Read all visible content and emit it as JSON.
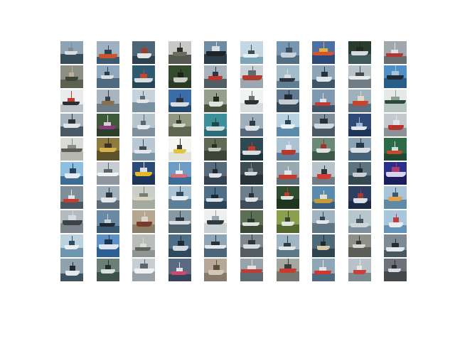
{
  "figure": {
    "rows": 10,
    "columns": 10,
    "subject": "boat",
    "tiles": [
      [
        {
          "sky": "#8ea4b4",
          "water": "#394e5c",
          "hull": "#d8dde2",
          "accent": "#7b8c98"
        },
        {
          "sky": "#9db1c2",
          "water": "#3d5a70",
          "hull": "#c8552c",
          "accent": "#2f4251"
        },
        {
          "sky": "#4e6578",
          "water": "#2e4150",
          "hull": "#e2e4e6",
          "accent": "#a13c2c"
        },
        {
          "sky": "#c7c9c5",
          "water": "#55594f",
          "hull": "#6d6a60",
          "accent": "#2c2d2a"
        },
        {
          "sky": "#6f8ca3",
          "water": "#2a3c4a",
          "hull": "#1e2328",
          "accent": "#d9dee2"
        },
        {
          "sky": "#c3d8e2",
          "water": "#7fa6b8",
          "hull": "#e6eef2",
          "accent": "#3a4c55"
        },
        {
          "sky": "#7895b2",
          "water": "#536d82",
          "hull": "#c5d2dc",
          "accent": "#3d4f5e"
        },
        {
          "sky": "#4d6fa3",
          "water": "#2e4a78",
          "hull": "#d9532a",
          "accent": "#e2b040"
        },
        {
          "sky": "#2b3b2e",
          "water": "#3f5a5c",
          "hull": "#d5d9dc",
          "accent": "#1f2b24"
        },
        {
          "sky": "#a2a7ab",
          "water": "#6a6d70",
          "hull": "#b53434",
          "accent": "#e0e2e3"
        }
      ],
      [
        {
          "sky": "#8b8f84",
          "water": "#5c624f",
          "hull": "#3e4436",
          "accent": "#b8b09a"
        },
        {
          "sky": "#8fa8bd",
          "water": "#4e6a80",
          "hull": "#dadfe3",
          "accent": "#2f3d48"
        },
        {
          "sky": "#2f5a72",
          "water": "#274556",
          "hull": "#d6dde2",
          "accent": "#c04a2e"
        },
        {
          "sky": "#334a2c",
          "water": "#2a3a26",
          "hull": "#c9cfc8",
          "accent": "#1b2417"
        },
        {
          "sky": "#a6b3bc",
          "water": "#525e66",
          "hull": "#c2332c",
          "accent": "#2e363c"
        },
        {
          "sky": "#cad2d8",
          "water": "#9aa7b1",
          "hull": "#b23a2d",
          "accent": "#5d6a73"
        },
        {
          "sky": "#a3bccb",
          "water": "#5f7d90",
          "hull": "#2d3338",
          "accent": "#d7dde1"
        },
        {
          "sky": "#8da4b6",
          "water": "#3d566a",
          "hull": "#e0e5e9",
          "accent": "#24323d"
        },
        {
          "sky": "#b7c2c9",
          "water": "#707d86",
          "hull": "#e8eaec",
          "accent": "#414a51"
        },
        {
          "sky": "#4f8fc7",
          "water": "#2a5c8a",
          "hull": "#1f2a33",
          "accent": "#a6c3da"
        }
      ],
      [
        {
          "sky": "#e9ecee",
          "water": "#b9c1c6",
          "hull": "#2a2f33",
          "accent": "#c23b2e"
        },
        {
          "sky": "#a9b6bf",
          "water": "#6e7c86",
          "hull": "#8a6f4e",
          "accent": "#3a4046"
        },
        {
          "sky": "#c6d3dc",
          "water": "#7890a0",
          "hull": "#e3e6e8",
          "accent": "#5b6a74"
        },
        {
          "sky": "#3b6ea8",
          "water": "#26496e",
          "hull": "#d8dde1",
          "accent": "#2a3138"
        },
        {
          "sky": "#95a08c",
          "water": "#48533f",
          "hull": "#dfe3dd",
          "accent": "#22291e"
        },
        {
          "sky": "#f1f2f2",
          "water": "#d9dcdd",
          "hull": "#2c3033",
          "accent": "#6a6f72"
        },
        {
          "sky": "#607a92",
          "water": "#364a5c",
          "hull": "#c4cdd4",
          "accent": "#1f2a33"
        },
        {
          "sky": "#7f99b0",
          "water": "#3e5468",
          "hull": "#c23a32",
          "accent": "#dfe4e8"
        },
        {
          "sky": "#9eb1bf",
          "water": "#58707f",
          "hull": "#c8452c",
          "accent": "#e6d8c8"
        },
        {
          "sky": "#e5e9e8",
          "water": "#b8c4c0",
          "hull": "#2b4a3a",
          "accent": "#8a9e94"
        }
      ],
      [
        {
          "sky": "#a8b4bd",
          "water": "#4b5964",
          "hull": "#e1e5e8",
          "accent": "#2a333a"
        },
        {
          "sky": "#3f5a3a",
          "water": "#2c3f2a",
          "hull": "#8a3a7a",
          "accent": "#d8d0d6"
        },
        {
          "sky": "#b7c4cc",
          "water": "#7e8f9b",
          "hull": "#e4e8ea",
          "accent": "#596670"
        },
        {
          "sky": "#8f9a80",
          "water": "#5c6650",
          "hull": "#d4d6cd",
          "accent": "#353b2d"
        },
        {
          "sky": "#3d8f9a",
          "water": "#2b6c76",
          "hull": "#d6dfe1",
          "accent": "#1f4a50"
        },
        {
          "sky": "#9fb0bc",
          "water": "#56697a",
          "hull": "#dce2e6",
          "accent": "#2e3b45"
        },
        {
          "sky": "#b8d2e2",
          "water": "#5c8aa8",
          "hull": "#eaf0f3",
          "accent": "#2b4456"
        },
        {
          "sky": "#7f8e98",
          "water": "#4a5963",
          "hull": "#d2d8dc",
          "accent": "#26313a"
        },
        {
          "sky": "#2d4a78",
          "water": "#1e3558",
          "hull": "#e2e7ed",
          "accent": "#9fb6d3"
        },
        {
          "sky": "#c3c9cd",
          "water": "#8c9397",
          "hull": "#b6332c",
          "accent": "#e3e6e8"
        }
      ],
      [
        {
          "sky": "#d9dbd6",
          "water": "#b7b9b1",
          "hull": "#5a5e58",
          "accent": "#898c84"
        },
        {
          "sky": "#8c7a3e",
          "water": "#5e5229",
          "hull": "#d7b24c",
          "accent": "#3a3420"
        },
        {
          "sky": "#b9c8d2",
          "water": "#7f96a7",
          "hull": "#e4e8eb",
          "accent": "#3c4b56"
        },
        {
          "sky": "#f5f5f2",
          "water": "#e3e3dc",
          "hull": "#e3c43e",
          "accent": "#3b3a33"
        },
        {
          "sky": "#5f6b57",
          "water": "#3c4636",
          "hull": "#c5c8c1",
          "accent": "#262d21"
        },
        {
          "sky": "#2f4a52",
          "water": "#1f353c",
          "hull": "#d9dfe1",
          "accent": "#c23b2e"
        },
        {
          "sky": "#a9c2d4",
          "water": "#5c7d96",
          "hull": "#b8382e",
          "accent": "#e4e8eb"
        },
        {
          "sky": "#6b8a7a",
          "water": "#3e5a4c",
          "hull": "#dfe3e0",
          "accent": "#9f3428"
        },
        {
          "sky": "#8aa3b5",
          "water": "#46617a",
          "hull": "#d9dfe4",
          "accent": "#28384a"
        },
        {
          "sky": "#2d6a48",
          "water": "#1d4a31",
          "hull": "#c44a2c",
          "accent": "#d6d9d4"
        }
      ],
      [
        {
          "sky": "#8fbfe0",
          "water": "#3c6e95",
          "hull": "#e5ebef",
          "accent": "#26425a"
        },
        {
          "sky": "#c6ccd0",
          "water": "#8e979d",
          "hull": "#f0f2f3",
          "accent": "#59636a"
        },
        {
          "sky": "#2c4a78",
          "water": "#1d3558",
          "hull": "#e2b72c",
          "accent": "#dadfe6"
        },
        {
          "sky": "#6e9cc4",
          "water": "#3c6d98",
          "hull": "#d96a7a",
          "accent": "#e8edf2"
        },
        {
          "sky": "#566b7c",
          "water": "#34434f",
          "hull": "#dfe3e6",
          "accent": "#1f2930"
        },
        {
          "sky": "#3e4c54",
          "water": "#28343a",
          "hull": "#d6dcdf",
          "accent": "#7b888f"
        },
        {
          "sky": "#9aa8b2",
          "water": "#5f6d78",
          "hull": "#c23a2e",
          "accent": "#e4e7e9"
        },
        {
          "sky": "#b7c2c9",
          "water": "#6f7d88",
          "hull": "#d33a30",
          "accent": "#2c363e"
        },
        {
          "sky": "#5c7480",
          "water": "#35474f",
          "hull": "#c8d0d4",
          "accent": "#1e2a30"
        },
        {
          "sky": "#2a2f8a",
          "water": "#1a1e5c",
          "hull": "#d8d2ea",
          "accent": "#b13a6a"
        }
      ],
      [
        {
          "sky": "#7f8f9a",
          "water": "#485864",
          "hull": "#c73a30",
          "accent": "#e1e5e8"
        },
        {
          "sky": "#9fb0bb",
          "water": "#5a6c78",
          "hull": "#e3e7ea",
          "accent": "#2c3942"
        },
        {
          "sky": "#c8cfc8",
          "water": "#a3ab9f",
          "hull": "#d8d4c4",
          "accent": "#7a7e70"
        },
        {
          "sky": "#a9c3d2",
          "water": "#5d8099",
          "hull": "#e6ecef",
          "accent": "#2f4a5e"
        },
        {
          "sky": "#4f6e88",
          "water": "#2d465c",
          "hull": "#dde3e8",
          "accent": "#1b2a36"
        },
        {
          "sky": "#6c7f8c",
          "water": "#3d4e5a",
          "hull": "#e0e4e7",
          "accent": "#25323b"
        },
        {
          "sky": "#2e4c2e",
          "water": "#1e3520",
          "hull": "#dfe3df",
          "accent": "#c23b2e"
        },
        {
          "sky": "#5a8ab0",
          "water": "#3a5f7e",
          "hull": "#c49a3a",
          "accent": "#e6e0cc"
        },
        {
          "sky": "#2d3e64",
          "water": "#1d2b47",
          "hull": "#dadfe8",
          "accent": "#9f3a3a"
        },
        {
          "sky": "#a8c6d8",
          "water": "#5e8aa6",
          "hull": "#e5a04a",
          "accent": "#3c5a6e"
        }
      ],
      [
        {
          "sky": "#b3bbbf",
          "water": "#7c868c",
          "hull": "#3c4449",
          "accent": "#d9dcde"
        },
        {
          "sky": "#6b8aa6",
          "water": "#3a5872",
          "hull": "#1f2830",
          "accent": "#c9d3dc"
        },
        {
          "sky": "#b6a890",
          "water": "#8a7e68",
          "hull": "#7a3a2a",
          "accent": "#ddd6c8"
        },
        {
          "sky": "#869aa6",
          "water": "#4f636f",
          "hull": "#d9dfe2",
          "accent": "#2b3740"
        },
        {
          "sky": "#eef0f0",
          "water": "#c9d0d3",
          "hull": "#2f3a40",
          "accent": "#9aa6ad"
        },
        {
          "sky": "#5c6f56",
          "water": "#3a4a36",
          "hull": "#dde2dc",
          "accent": "#2a3327"
        },
        {
          "sky": "#8aa04c",
          "water": "#556832",
          "hull": "#e1e5dc",
          "accent": "#3c3f33"
        },
        {
          "sky": "#9fb3c0",
          "water": "#5f7686",
          "hull": "#e4e8eb",
          "accent": "#34434d"
        },
        {
          "sky": "#b8c6cd",
          "water": "#7f929c",
          "hull": "#cfd7db",
          "accent": "#46555e"
        },
        {
          "sky": "#a9c7dc",
          "water": "#6393b6",
          "hull": "#e9edf0",
          "accent": "#c33d3a"
        }
      ],
      [
        {
          "sky": "#bcd2de",
          "water": "#6d97b0",
          "hull": "#e9eef1",
          "accent": "#2f4b5e"
        },
        {
          "sky": "#5e8fc6",
          "water": "#2c5f94",
          "hull": "#dde6ef",
          "accent": "#1d3650"
        },
        {
          "sky": "#b8bdb9",
          "water": "#8f9590",
          "hull": "#5d625e",
          "accent": "#dadcda"
        },
        {
          "sky": "#4f6f86",
          "water": "#2f4a5e",
          "hull": "#d3dbe0",
          "accent": "#1b2a35"
        },
        {
          "sky": "#8da5b6",
          "water": "#4c6679",
          "hull": "#e4e9ec",
          "accent": "#25323c"
        },
        {
          "sky": "#7e8890",
          "water": "#535c63",
          "hull": "#d7dcdf",
          "accent": "#2f363b"
        },
        {
          "sky": "#9fb5c3",
          "water": "#5c7788",
          "hull": "#e2e7ea",
          "accent": "#2d3c46"
        },
        {
          "sky": "#4e6a78",
          "water": "#2e4450",
          "hull": "#d5c9a8",
          "accent": "#1d2a31"
        },
        {
          "sky": "#8d9088",
          "water": "#5c5f57",
          "hull": "#d8d8d2",
          "accent": "#33352f"
        },
        {
          "sky": "#7d8a94",
          "water": "#4a5760",
          "hull": "#e6e9eb",
          "accent": "#252d33"
        }
      ],
      [
        {
          "sky": "#8fa2ae",
          "water": "#3e5260",
          "hull": "#e5e9ec",
          "accent": "#1f2a32"
        },
        {
          "sky": "#6b7f7a",
          "water": "#3e514c",
          "hull": "#d9dfdd",
          "accent": "#24302c"
        },
        {
          "sky": "#c8ced2",
          "water": "#98a1a7",
          "hull": "#eef0f1",
          "accent": "#5d676e"
        },
        {
          "sky": "#5a6a82",
          "water": "#37445a",
          "hull": "#c94a6a",
          "accent": "#dfe2e8"
        },
        {
          "sky": "#b5a898",
          "water": "#877a6b",
          "hull": "#d6c7b3",
          "accent": "#5c4f42"
        },
        {
          "sky": "#98a4ac",
          "water": "#5e6a72",
          "hull": "#c23b33",
          "accent": "#e0e3e5"
        },
        {
          "sky": "#a4a79f",
          "water": "#737770",
          "hull": "#c83a2c",
          "accent": "#3a3d38"
        },
        {
          "sky": "#8ea7b8",
          "water": "#4e6a7e",
          "hull": "#d6352e",
          "accent": "#e4e8eb"
        },
        {
          "sky": "#b9c2c8",
          "water": "#7d8990",
          "hull": "#c9403a",
          "accent": "#e6e9ea"
        },
        {
          "sky": "#6d7378",
          "water": "#42484c",
          "hull": "#dadcde",
          "accent": "#2a2e31"
        }
      ]
    ]
  }
}
